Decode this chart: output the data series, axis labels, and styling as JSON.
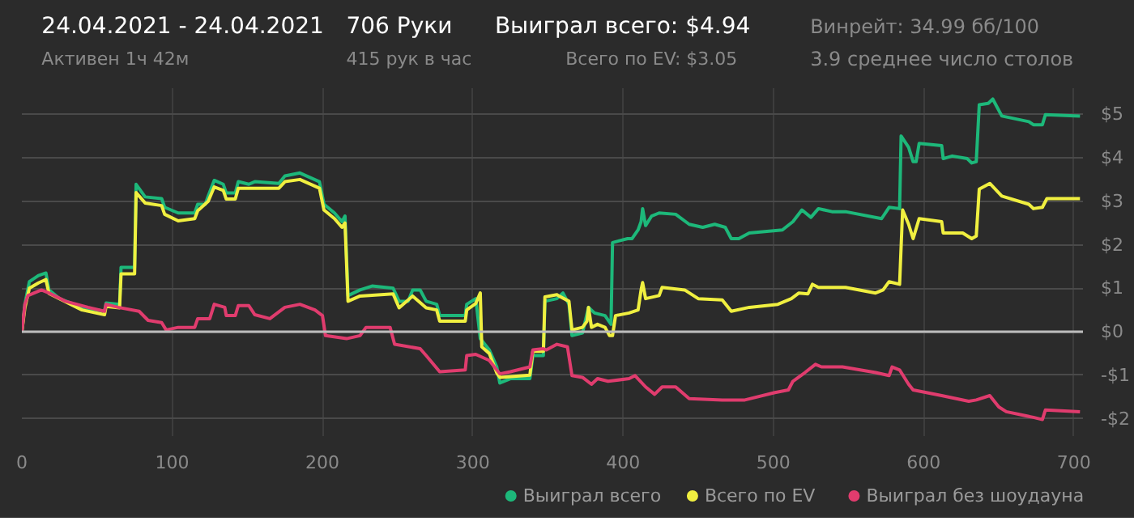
{
  "chart_data": {
    "type": "line",
    "title": "24.04.2021 - 24.04.2021",
    "subtitle": "Активен 1ч 42м",
    "annotations": [
      "706 Руки",
      "415 рук в час",
      "Выиграл всего: $4.94",
      "Всего по EV: $3.05",
      "Винрейт: 34.99 бб/100",
      "3.9 среднее число столов"
    ],
    "xlim": [
      0,
      706
    ],
    "xticks": [
      0,
      100,
      200,
      300,
      400,
      500,
      600,
      700
    ],
    "ylim": [
      -2.4,
      5.6
    ],
    "yticks": [
      {
        "value": -2,
        "label": "-$2"
      },
      {
        "value": -1,
        "label": "-$1"
      },
      {
        "value": 0,
        "label": "$0"
      },
      {
        "value": 1,
        "label": "$1"
      },
      {
        "value": 2,
        "label": "$2"
      },
      {
        "value": 3,
        "label": "$3"
      },
      {
        "value": 4,
        "label": "$4"
      },
      {
        "value": 5,
        "label": "$5"
      }
    ],
    "grid": true,
    "legend": "bottom right",
    "line_style": "solid",
    "ref_lines": [
      {
        "axis": "y",
        "value": 0,
        "label": null,
        "color": "#bbbbbb"
      }
    ],
    "series": [
      {
        "name": "Выиграл всего",
        "color": "#1db87a",
        "x": [
          0,
          2,
          5,
          11,
          16,
          18,
          25,
          40,
          55,
          56,
          65,
          66,
          75,
          76,
          82,
          93,
          95,
          104,
          115,
          117,
          122,
          124,
          128,
          134,
          136,
          142,
          144,
          151,
          155,
          171,
          175,
          185,
          198,
          201,
          208,
          213,
          215,
          217,
          225,
          233,
          247,
          251,
          257,
          260,
          265,
          269,
          276,
          278,
          295,
          296,
          302,
          305,
          311,
          316,
          318,
          325,
          338,
          340,
          347,
          348,
          356,
          360,
          364,
          366,
          373,
          377,
          381,
          388,
          392,
          393,
          403,
          406,
          410,
          412,
          413,
          415,
          419,
          424,
          435,
          444,
          453,
          461,
          468,
          472,
          477,
          484,
          506,
          513,
          519,
          525,
          530,
          539,
          548,
          572,
          577,
          584,
          585,
          590,
          593,
          595,
          597,
          612,
          613,
          619,
          629,
          632,
          635,
          637,
          643,
          646,
          652,
          670,
          673,
          679,
          681,
          704
        ],
        "values": [
          0,
          0.63,
          1.15,
          1.29,
          1.35,
          0.96,
          0.76,
          0.56,
          0.47,
          0.66,
          0.63,
          1.48,
          1.48,
          3.39,
          3.1,
          3.06,
          2.86,
          2.73,
          2.73,
          2.93,
          2.93,
          3.12,
          3.48,
          3.39,
          3.19,
          3.19,
          3.45,
          3.39,
          3.45,
          3.41,
          3.58,
          3.65,
          3.45,
          2.93,
          2.73,
          2.53,
          2.66,
          0.83,
          0.96,
          1.05,
          1.0,
          0.7,
          0.7,
          0.96,
          0.96,
          0.7,
          0.63,
          0.37,
          0.37,
          0.63,
          0.76,
          -0.16,
          -0.42,
          -0.81,
          -1.18,
          -1.08,
          -1.08,
          -0.55,
          -0.55,
          0.7,
          0.76,
          0.89,
          0.63,
          -0.09,
          -0.03,
          0.56,
          0.43,
          0.37,
          0.17,
          2.05,
          2.14,
          2.14,
          2.34,
          2.53,
          2.83,
          2.44,
          2.66,
          2.73,
          2.7,
          2.47,
          2.4,
          2.47,
          2.4,
          2.14,
          2.14,
          2.27,
          2.34,
          2.53,
          2.8,
          2.63,
          2.83,
          2.76,
          2.76,
          2.6,
          2.86,
          2.83,
          4.5,
          4.24,
          3.91,
          3.91,
          4.33,
          4.28,
          3.98,
          4.04,
          3.98,
          3.88,
          3.91,
          5.22,
          5.25,
          5.35,
          4.96,
          4.83,
          4.76,
          4.76,
          4.99,
          4.96
        ]
      },
      {
        "name": "Всего по EV",
        "color": "#f0ef40",
        "x": [
          0,
          2,
          5,
          11,
          16,
          18,
          40,
          55,
          56,
          65,
          66,
          75,
          76,
          82,
          93,
          95,
          104,
          115,
          117,
          124,
          128,
          134,
          136,
          142,
          144,
          155,
          171,
          175,
          185,
          198,
          201,
          208,
          213,
          215,
          217,
          225,
          247,
          251,
          260,
          269,
          276,
          278,
          295,
          296,
          302,
          305,
          306,
          311,
          316,
          318,
          338,
          340,
          347,
          348,
          356,
          357,
          364,
          366,
          373,
          376,
          377,
          379,
          383,
          388,
          391,
          393,
          395,
          404,
          410,
          412,
          413,
          415,
          424,
          426,
          441,
          450,
          466,
          472,
          484,
          503,
          512,
          517,
          523,
          526,
          530,
          548,
          568,
          573,
          577,
          584,
          586,
          590,
          593,
          597,
          612,
          613,
          626,
          632,
          635,
          637,
          644,
          652,
          670,
          673,
          679,
          682,
          704
        ],
        "values": [
          0,
          0.55,
          1.0,
          1.12,
          1.2,
          0.88,
          0.5,
          0.39,
          0.58,
          0.55,
          1.33,
          1.33,
          3.2,
          2.96,
          2.9,
          2.7,
          2.55,
          2.6,
          2.78,
          3.0,
          3.33,
          3.25,
          3.05,
          3.05,
          3.3,
          3.3,
          3.3,
          3.45,
          3.5,
          3.3,
          2.8,
          2.6,
          2.4,
          2.5,
          0.7,
          0.82,
          0.87,
          0.55,
          0.82,
          0.55,
          0.5,
          0.24,
          0.24,
          0.5,
          0.65,
          0.89,
          -0.35,
          -0.5,
          -0.95,
          -1.05,
          -1.0,
          -0.45,
          -0.45,
          0.8,
          0.85,
          0.83,
          0.7,
          0.04,
          0.1,
          0.24,
          0.56,
          0.1,
          0.17,
          0.1,
          -0.09,
          -0.09,
          0.37,
          0.43,
          0.5,
          0.96,
          1.13,
          0.76,
          0.83,
          1.02,
          0.96,
          0.76,
          0.73,
          0.47,
          0.56,
          0.63,
          0.76,
          0.89,
          0.87,
          1.09,
          1.02,
          1.02,
          0.89,
          0.96,
          1.15,
          1.09,
          2.8,
          2.47,
          2.14,
          2.6,
          2.53,
          2.27,
          2.27,
          2.14,
          2.2,
          3.28,
          3.41,
          3.12,
          2.93,
          2.83,
          2.86,
          3.06,
          3.06
        ]
      },
      {
        "name": "Выиграл без шоудауна",
        "color": "#e03c6e",
        "x": [
          0,
          2,
          4,
          13,
          18,
          29,
          44,
          55,
          56,
          64,
          78,
          84,
          93,
          96,
          104,
          115,
          117,
          125,
          128,
          135,
          136,
          142,
          144,
          151,
          155,
          165,
          175,
          185,
          195,
          200,
          202,
          216,
          225,
          229,
          245,
          248,
          265,
          269,
          278,
          295,
          296,
          302,
          311,
          318,
          325,
          338,
          340,
          347,
          349,
          356,
          363,
          366,
          373,
          379,
          383,
          390,
          404,
          408,
          415,
          421,
          426,
          435,
          444,
          466,
          481,
          501,
          510,
          513,
          521,
          528,
          532,
          546,
          568,
          577,
          579,
          584,
          590,
          593,
          612,
          630,
          635,
          644,
          650,
          655,
          673,
          679,
          681,
          704
        ],
        "values": [
          0,
          0.63,
          0.83,
          0.96,
          0.89,
          0.7,
          0.56,
          0.47,
          0.63,
          0.56,
          0.47,
          0.26,
          0.21,
          0.04,
          0.1,
          0.1,
          0.3,
          0.3,
          0.63,
          0.56,
          0.37,
          0.37,
          0.6,
          0.6,
          0.39,
          0.3,
          0.56,
          0.63,
          0.5,
          0.37,
          -0.09,
          -0.16,
          -0.09,
          0.1,
          0.1,
          -0.29,
          -0.39,
          -0.55,
          -0.92,
          -0.88,
          -0.55,
          -0.52,
          -0.66,
          -0.97,
          -0.92,
          -0.81,
          -0.42,
          -0.39,
          -0.42,
          -0.29,
          -0.35,
          -1.01,
          -1.05,
          -1.21,
          -1.08,
          -1.14,
          -1.08,
          -1.01,
          -1.27,
          -1.44,
          -1.27,
          -1.27,
          -1.54,
          -1.57,
          -1.57,
          -1.4,
          -1.34,
          -1.14,
          -0.94,
          -0.75,
          -0.81,
          -0.81,
          -0.94,
          -1.01,
          -0.81,
          -0.88,
          -1.21,
          -1.34,
          -1.47,
          -1.6,
          -1.57,
          -1.47,
          -1.73,
          -1.84,
          -1.97,
          -2.02,
          -1.8,
          -1.84
        ]
      }
    ]
  }
}
